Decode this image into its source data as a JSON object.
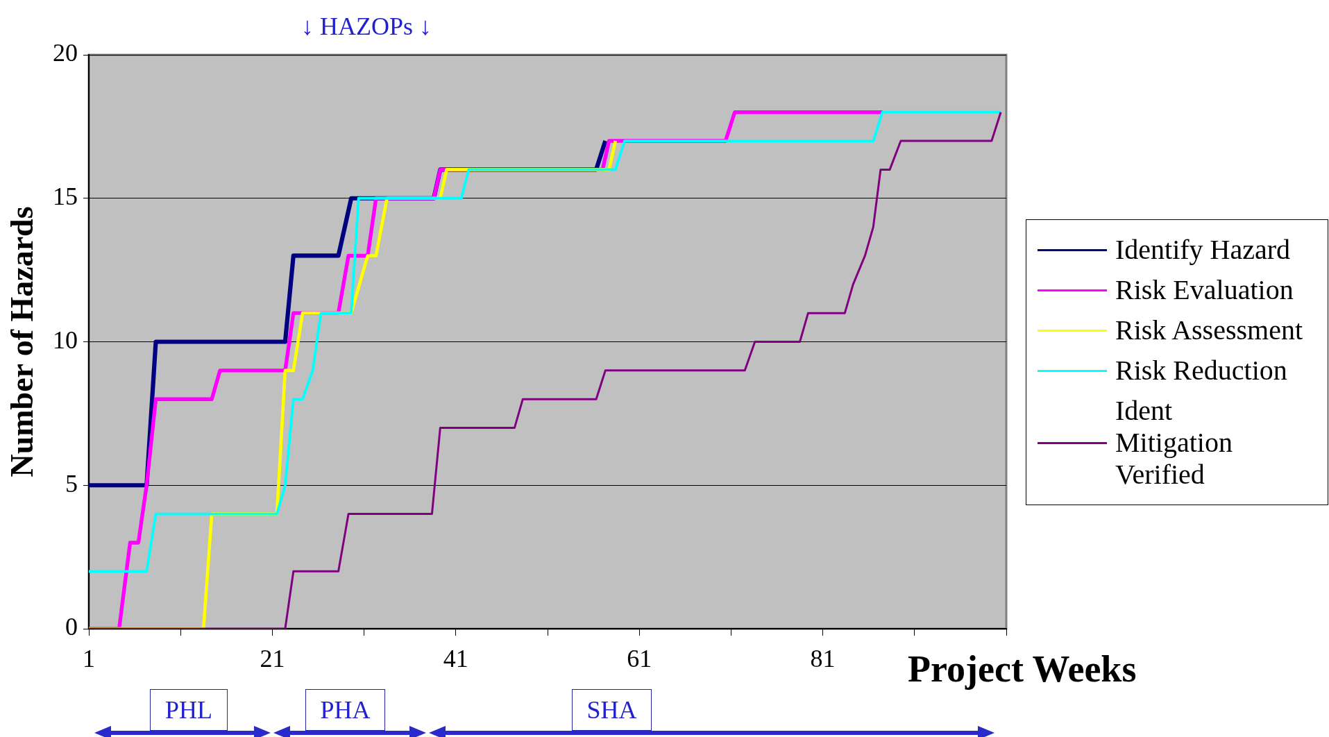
{
  "chart_data": {
    "type": "line",
    "xlabel": "Project Weeks",
    "ylabel": "Number of Hazards",
    "xlim": [
      1,
      101
    ],
    "xticks": [
      1,
      {
        "value": 11,
        "label": null
      },
      21,
      {
        "value": 31,
        "label": null
      },
      41,
      {
        "value": 51,
        "label": null
      },
      61,
      {
        "value": 71,
        "label": null
      },
      81,
      {
        "value": 91,
        "label": null
      },
      {
        "value": 101,
        "label": null
      }
    ],
    "ylim": [
      0,
      20
    ],
    "yticks": [
      0,
      5,
      10,
      15,
      20
    ],
    "grid": "y",
    "legend": "right",
    "marker": "none",
    "line_style": "solid",
    "series": [
      {
        "name": "Identify Hazard",
        "color": "#000080",
        "x": [
          1,
          7.3,
          8.3,
          22.4,
          23.3,
          28.2,
          29.6,
          38.6,
          39.3,
          56.3,
          57.3
        ],
        "values": [
          5,
          5,
          10,
          10,
          13,
          13,
          15,
          15,
          16,
          16,
          17
        ]
      },
      {
        "name": "Risk Evaluation",
        "color": "#ff00ff",
        "x": [
          1,
          4.3,
          5.5,
          6.4,
          7.3,
          8.3,
          14.4,
          15.3,
          22.4,
          23.3,
          28.2,
          29.3,
          31.4,
          32.3,
          38.6,
          39.3,
          57,
          57.7,
          70.4,
          71.4,
          87.5
        ],
        "values": [
          0,
          0,
          3,
          3,
          5,
          8,
          8,
          9,
          9,
          11,
          11,
          13,
          13,
          15,
          15,
          16,
          16,
          17,
          17,
          18,
          18
        ]
      },
      {
        "name": "Risk Assessment",
        "color": "#ffff00",
        "x": [
          1,
          13.5,
          14.4,
          21.5,
          22.4,
          23.3,
          24.3,
          29.6,
          31.4,
          32.3,
          33.5,
          39.3,
          40,
          57.7,
          58.4
        ],
        "values": [
          0,
          0,
          4,
          4,
          9,
          9,
          11,
          11,
          13,
          13,
          15,
          15,
          16,
          16,
          17
        ]
      },
      {
        "name": "Risk Reduction",
        "color": "#00ffff",
        "x": [
          1,
          7.3,
          8.3,
          21.5,
          22.4,
          23.3,
          24.3,
          25.4,
          26.3,
          29.6,
          30.4,
          41.6,
          42.4,
          58.4,
          59.4,
          86.5,
          87.5,
          100.4
        ],
        "values": [
          2,
          2,
          4,
          4,
          5,
          8,
          8,
          9,
          11,
          11,
          15,
          15,
          16,
          16,
          17,
          17,
          18,
          18
        ]
      },
      {
        "name": "Ident Mitigation Verified",
        "color": "#800080",
        "x": [
          1,
          22.4,
          23.3,
          28.2,
          29.3,
          38.4,
          39.3,
          47.4,
          48.3,
          56.3,
          57.3,
          72.5,
          73.6,
          78.5,
          79.4,
          83.4,
          84.3,
          85.6,
          86.5,
          87.3,
          88.3,
          89.5,
          99.4,
          100.4
        ],
        "values": [
          0,
          0,
          2,
          2,
          4,
          4,
          7,
          7,
          8,
          8,
          9,
          9,
          10,
          10,
          11,
          11,
          12,
          13,
          14,
          16,
          16,
          17,
          17,
          18
        ]
      }
    ],
    "annotations": [
      "↓ HAZOPs ↓",
      "PHL",
      "PHA",
      "SHA"
    ]
  }
}
